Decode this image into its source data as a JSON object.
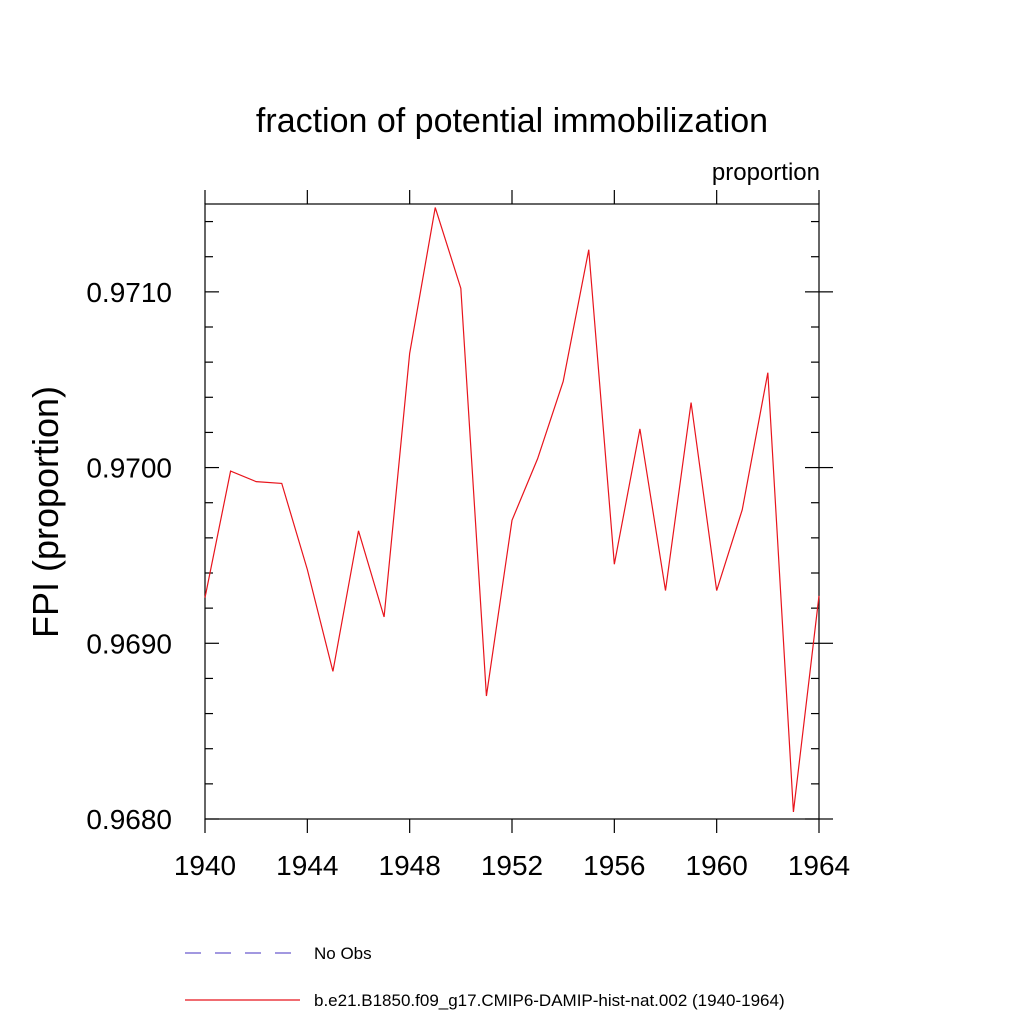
{
  "chart_data": {
    "type": "line",
    "title": "fraction of potential immobilization",
    "units_label": "proportion",
    "xlabel": "",
    "ylabel": "FPI  (proportion)",
    "xlim": [
      1940,
      1964
    ],
    "ylim": [
      0.968,
      0.9715
    ],
    "x_ticks": [
      1940,
      1944,
      1948,
      1952,
      1956,
      1960,
      1964
    ],
    "x_tick_labels": [
      "1940",
      "1944",
      "1948",
      "1952",
      "1956",
      "1960",
      "1964"
    ],
    "y_ticks": [
      0.968,
      0.969,
      0.97,
      0.971
    ],
    "y_tick_labels": [
      "0.9680",
      "0.9690",
      "0.9700",
      "0.9710"
    ],
    "grid": false,
    "legend_position": "bottom",
    "series": [
      {
        "name": "b.e21.B1850.f09_g17.CMIP6-DAMIP-hist-nat.002 (1940-1964)",
        "color": "#e8141c",
        "style": "solid",
        "x": [
          1940,
          1941,
          1942,
          1943,
          1944,
          1945,
          1946,
          1947,
          1948,
          1949,
          1950,
          1951,
          1952,
          1953,
          1954,
          1955,
          1956,
          1957,
          1958,
          1959,
          1960,
          1961,
          1962,
          1963,
          1964
        ],
        "values": [
          0.96926,
          0.96998,
          0.96992,
          0.96991,
          0.96942,
          0.96884,
          0.96964,
          0.96915,
          0.97065,
          0.97148,
          0.97102,
          0.9687,
          0.9697,
          0.97005,
          0.97049,
          0.97124,
          0.96945,
          0.97022,
          0.9693,
          0.97037,
          0.9693,
          0.96976,
          0.97054,
          0.96804,
          0.96927
        ]
      }
    ],
    "legend": [
      {
        "label": "No Obs",
        "color": "#6a5acd",
        "style": "dashed"
      },
      {
        "label": "b.e21.B1850.f09_g17.CMIP6-DAMIP-hist-nat.002 (1940-1964)",
        "color": "#e8141c",
        "style": "solid"
      }
    ]
  }
}
